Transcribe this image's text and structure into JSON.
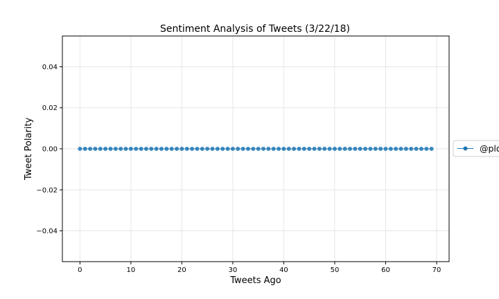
{
  "chart_data": {
    "type": "line",
    "title": "Sentiment Analysis of Tweets (3/22/18)",
    "xlabel": "Tweets Ago",
    "ylabel": "Tweet Polarity",
    "xlim": [
      -3.45,
      72.45
    ],
    "ylim": [
      -0.055,
      0.055
    ],
    "xticks": [
      0,
      10,
      20,
      30,
      40,
      50,
      60,
      70
    ],
    "xtick_labels": [
      "0",
      "10",
      "20",
      "30",
      "40",
      "50",
      "60",
      "70"
    ],
    "yticks": [
      -0.04,
      -0.02,
      0.0,
      0.02,
      0.04
    ],
    "ytick_labels": [
      "−0.04",
      "−0.02",
      "0.00",
      "0.02",
      "0.04"
    ],
    "grid": true,
    "legend_placement": "right, outside plot (clipped)",
    "series": [
      {
        "name": "@plo",
        "color": "#1f77b4",
        "marker": "circle",
        "x": [
          0,
          1,
          2,
          3,
          4,
          5,
          6,
          7,
          8,
          9,
          10,
          11,
          12,
          13,
          14,
          15,
          16,
          17,
          18,
          19,
          20,
          21,
          22,
          23,
          24,
          25,
          26,
          27,
          28,
          29,
          30,
          31,
          32,
          33,
          34,
          35,
          36,
          37,
          38,
          39,
          40,
          41,
          42,
          43,
          44,
          45,
          46,
          47,
          48,
          49,
          50,
          51,
          52,
          53,
          54,
          55,
          56,
          57,
          58,
          59,
          60,
          61,
          62,
          63,
          64,
          65,
          66,
          67,
          68,
          69
        ],
        "y": [
          0,
          0,
          0,
          0,
          0,
          0,
          0,
          0,
          0,
          0,
          0,
          0,
          0,
          0,
          0,
          0,
          0,
          0,
          0,
          0,
          0,
          0,
          0,
          0,
          0,
          0,
          0,
          0,
          0,
          0,
          0,
          0,
          0,
          0,
          0,
          0,
          0,
          0,
          0,
          0,
          0,
          0,
          0,
          0,
          0,
          0,
          0,
          0,
          0,
          0,
          0,
          0,
          0,
          0,
          0,
          0,
          0,
          0,
          0,
          0,
          0,
          0,
          0,
          0,
          0,
          0,
          0,
          0,
          0,
          0
        ]
      }
    ]
  }
}
